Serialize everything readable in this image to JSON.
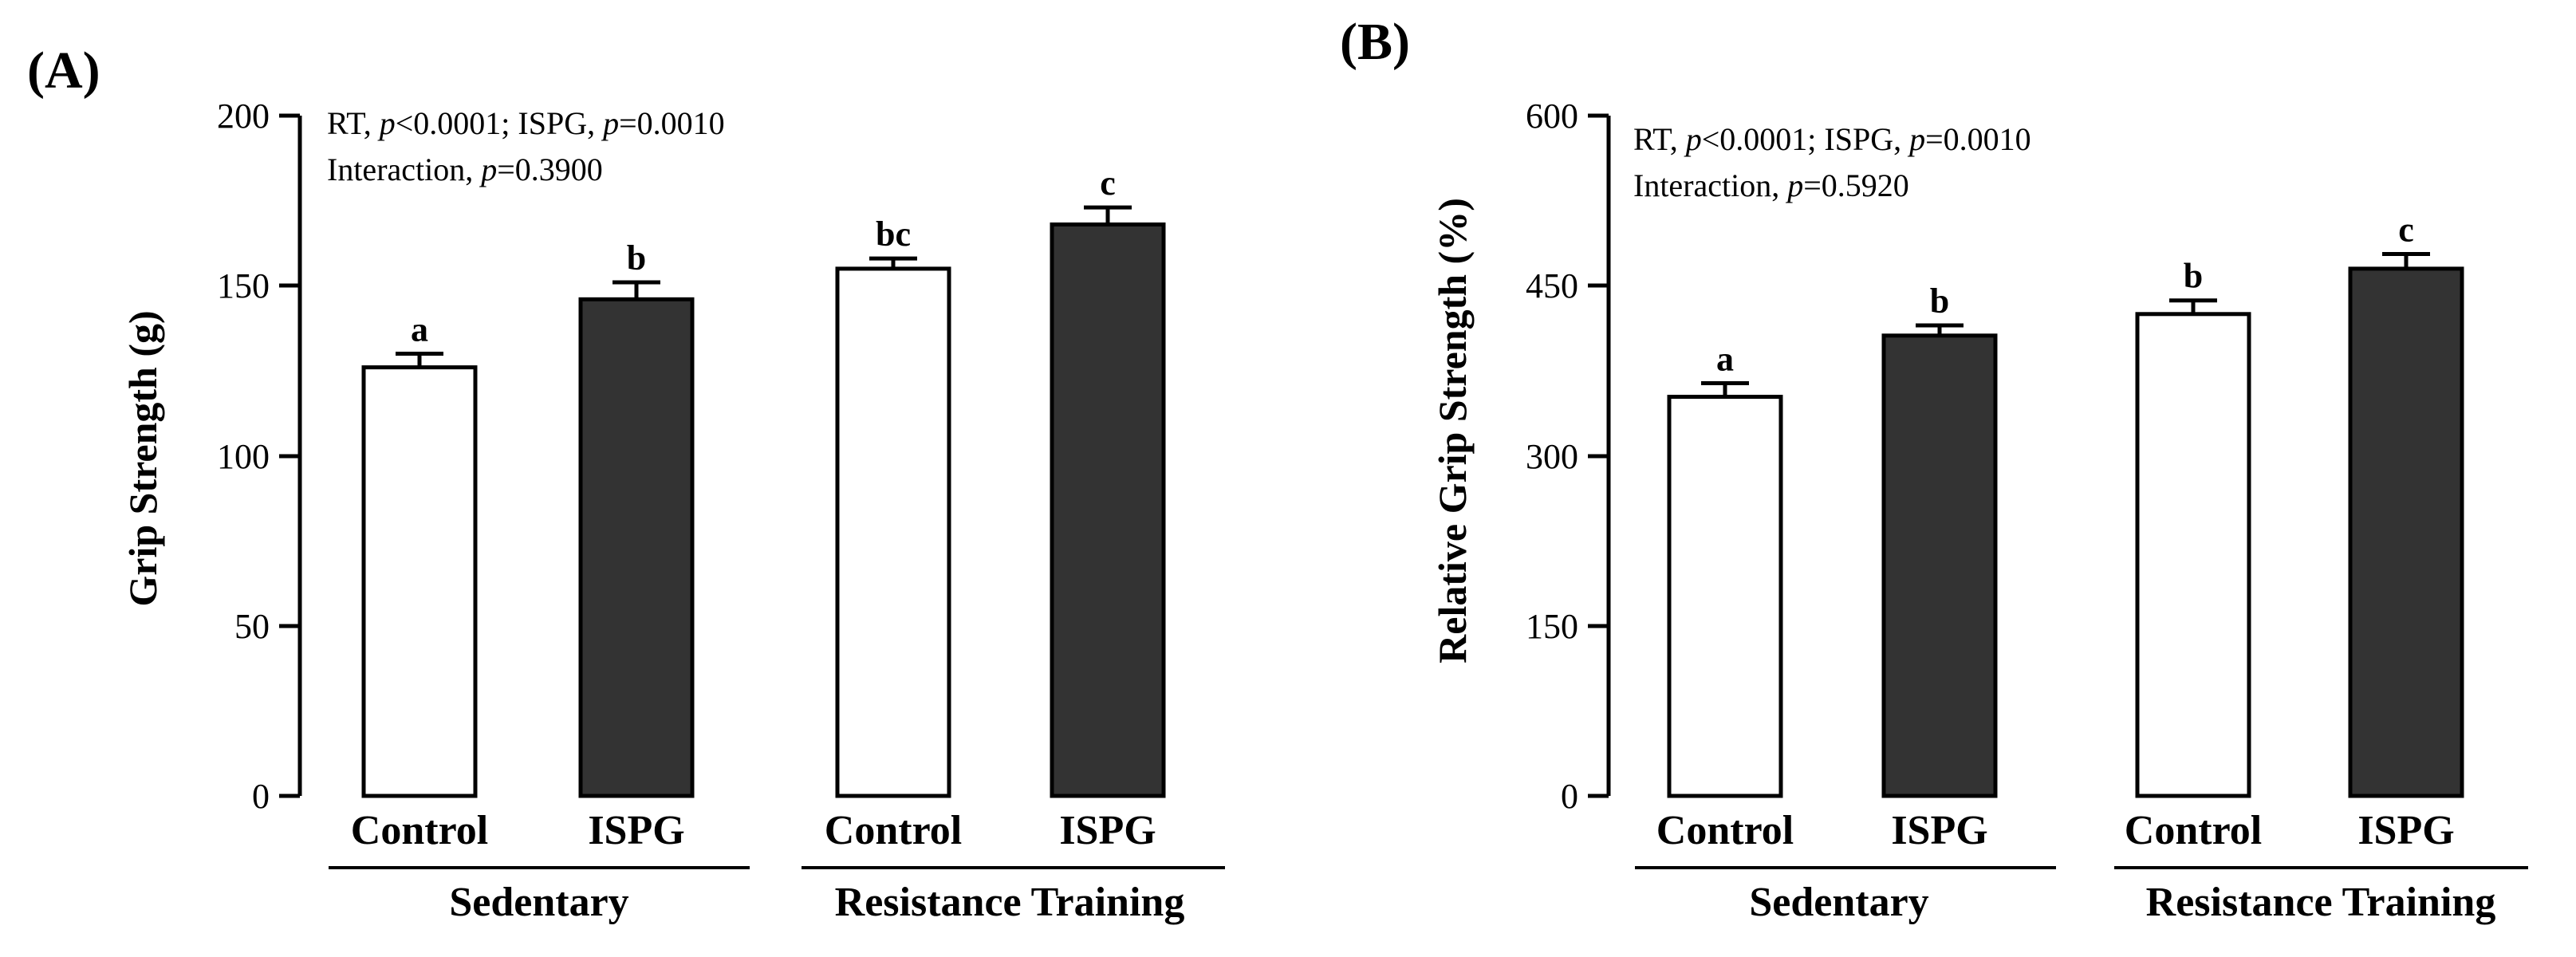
{
  "chart_data": [
    {
      "type": "bar",
      "panel": "(A)",
      "ylabel": "Grip Strength (g)",
      "ylim": [
        0,
        200
      ],
      "yticks": [
        0,
        50,
        100,
        150,
        200
      ],
      "categories": [
        "Control",
        "ISPG",
        "Control",
        "ISPG"
      ],
      "groups": [
        "Sedentary",
        "Resistance Training"
      ],
      "values": [
        126,
        146,
        155,
        168
      ],
      "errors": [
        4,
        5,
        3,
        5
      ],
      "fills": [
        "#ffffff",
        "#333333",
        "#ffffff",
        "#333333"
      ],
      "significance": [
        "a",
        "b",
        "bc",
        "c"
      ],
      "stats": {
        "line1": {
          "a": "RT, ",
          "b": "p",
          "c": "<0.0001; ISPG, ",
          "d": "p",
          "e": "=0.0010"
        },
        "line2": {
          "a": "Interaction, ",
          "b": "p",
          "c": "=0.3900"
        }
      }
    },
    {
      "type": "bar",
      "panel": "(B)",
      "ylabel": "Relative Grip Strength (%)",
      "ylim": [
        0,
        600
      ],
      "yticks": [
        0,
        150,
        300,
        450,
        600
      ],
      "categories": [
        "Control",
        "ISPG",
        "Control",
        "ISPG"
      ],
      "groups": [
        "Sedentary",
        "Resistance Training"
      ],
      "values": [
        352,
        406,
        425,
        465
      ],
      "errors": [
        12,
        9,
        12,
        13
      ],
      "fills": [
        "#ffffff",
        "#333333",
        "#ffffff",
        "#333333"
      ],
      "significance": [
        "a",
        "b",
        "b",
        "c"
      ],
      "stats": {
        "line1": {
          "a": "RT, ",
          "b": "p",
          "c": "<0.0001; ISPG, ",
          "d": "p",
          "e": "=0.0010"
        },
        "line2": {
          "a": "Interaction, ",
          "b": "p",
          "c": "=0.5920"
        }
      }
    }
  ]
}
